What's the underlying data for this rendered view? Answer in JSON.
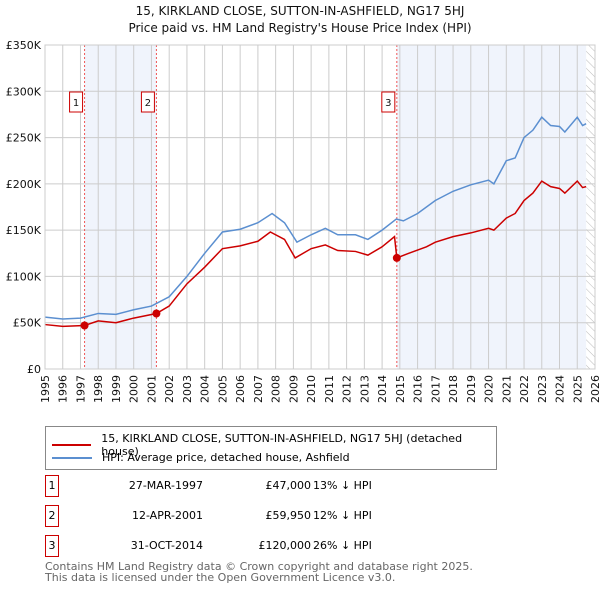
{
  "chart_data": {
    "type": "line",
    "title": "15, KIRKLAND CLOSE, SUTTON-IN-ASHFIELD, NG17 5HJ",
    "subtitle": "Price paid vs. HM Land Registry's House Price Index (HPI)",
    "xlim": [
      1995,
      2026
    ],
    "ylim": [
      0,
      350000
    ],
    "yticks": [
      {
        "v": 0,
        "label": "£0"
      },
      {
        "v": 50000,
        "label": "£50K"
      },
      {
        "v": 100000,
        "label": "£100K"
      },
      {
        "v": 150000,
        "label": "£150K"
      },
      {
        "v": 200000,
        "label": "£200K"
      },
      {
        "v": 250000,
        "label": "£250K"
      },
      {
        "v": 300000,
        "label": "£300K"
      },
      {
        "v": 350000,
        "label": "£350K"
      }
    ],
    "xticks": [
      "1995",
      "1996",
      "1997",
      "1998",
      "1999",
      "2000",
      "2001",
      "2002",
      "2003",
      "2004",
      "2005",
      "2006",
      "2007",
      "2008",
      "2009",
      "2010",
      "2011",
      "2012",
      "2013",
      "2014",
      "2015",
      "2016",
      "2017",
      "2018",
      "2019",
      "2020",
      "2021",
      "2022",
      "2023",
      "2024",
      "2025",
      "2026"
    ],
    "series": [
      {
        "name": "15, KIRKLAND CLOSE, SUTTON-IN-ASHFIELD, NG17 5HJ (detached house)",
        "color": "#cc0000",
        "x": [
          1995,
          1996,
          1997.23,
          1998,
          1999,
          2000,
          2001.28,
          2002,
          2003,
          2004,
          2005,
          2006,
          2007,
          2007.7,
          2008.5,
          2009.1,
          2010,
          2010.8,
          2011.5,
          2012.5,
          2013.2,
          2014,
          2014.7,
          2014.83,
          2015.5,
          2016.5,
          2017,
          2018,
          2019,
          2020,
          2020.3,
          2021,
          2021.5,
          2022,
          2022.5,
          2023,
          2023.5,
          2024,
          2024.3,
          2025,
          2025.3,
          2025.5
        ],
        "y": [
          48000,
          46000,
          47000,
          52000,
          50000,
          55000,
          59950,
          68000,
          92000,
          110000,
          130000,
          133000,
          138000,
          148000,
          140000,
          120000,
          130000,
          134000,
          128000,
          127000,
          123000,
          132000,
          143000,
          120000,
          125000,
          132000,
          137000,
          143000,
          147000,
          152000,
          150000,
          163000,
          168000,
          182000,
          190000,
          203000,
          197000,
          195000,
          190000,
          203000,
          196000,
          197000
        ]
      },
      {
        "name": "HPI: Average price, detached house, Ashfield",
        "color": "#5b8fd0",
        "x": [
          1995,
          1996,
          1997,
          1998,
          1999,
          2000,
          2001,
          2002,
          2003,
          2004,
          2005,
          2006,
          2007,
          2007.8,
          2008.5,
          2009.2,
          2010,
          2010.8,
          2011.5,
          2012.5,
          2013.2,
          2014,
          2014.8,
          2015.2,
          2016,
          2017,
          2018,
          2019,
          2020,
          2020.3,
          2021,
          2021.5,
          2022,
          2022.5,
          2023,
          2023.5,
          2024,
          2024.3,
          2025,
          2025.3,
          2025.5
        ],
        "y": [
          56000,
          54000,
          55000,
          60000,
          59000,
          64000,
          68000,
          78000,
          100000,
          125000,
          148000,
          151000,
          158000,
          168000,
          158000,
          137000,
          145000,
          152000,
          145000,
          145000,
          140000,
          150000,
          162000,
          160000,
          168000,
          182000,
          192000,
          199000,
          204000,
          200000,
          225000,
          228000,
          250000,
          258000,
          272000,
          263000,
          262000,
          256000,
          272000,
          263000,
          265000
        ]
      }
    ],
    "sales": [
      {
        "num": "1",
        "x": 1997.23,
        "y": 47000,
        "date": "27-MAR-1997",
        "price": "£47,000",
        "hpi": "13% ↓ HPI"
      },
      {
        "num": "2",
        "x": 2001.28,
        "y": 59950,
        "date": "12-APR-2001",
        "price": "£59,950",
        "hpi": "12% ↓ HPI"
      },
      {
        "num": "3",
        "x": 2014.83,
        "y": 120000,
        "date": "31-OCT-2014",
        "price": "£120,000",
        "hpi": "26% ↓ HPI"
      }
    ],
    "shaded": [
      [
        1997.23,
        2001.28
      ],
      [
        2014.83,
        2025.5
      ]
    ],
    "hatch_from": 2025.5,
    "legend_placement": "bottom"
  },
  "footer": {
    "line1": "Contains HM Land Registry data © Crown copyright and database right 2025.",
    "line2": "This data is licensed under the Open Government Licence v3.0."
  }
}
